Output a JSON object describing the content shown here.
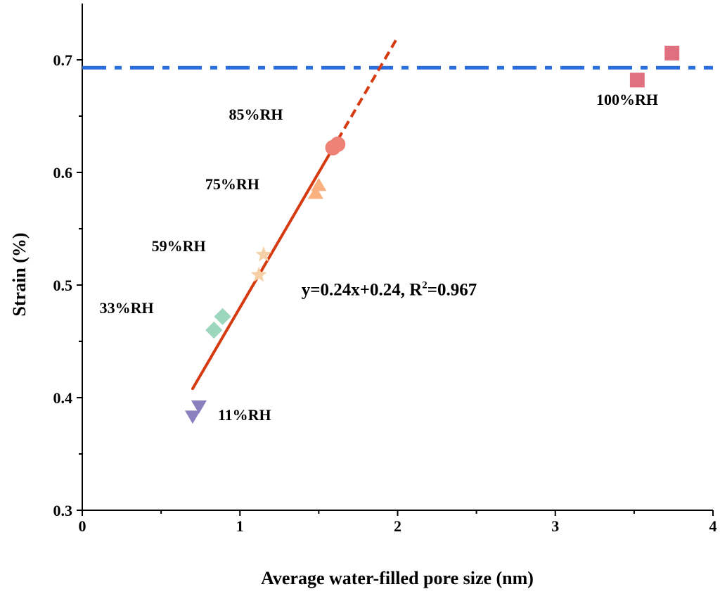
{
  "chart_data": {
    "type": "scatter",
    "xlabel": "Average water-filled pore size (nm)",
    "ylabel": "Strain (%)",
    "xlim": [
      0,
      4
    ],
    "ylim": [
      0.3,
      0.75
    ],
    "xticks": [
      "0",
      "1",
      "2",
      "3",
      "4"
    ],
    "yticks": [
      "0.3",
      "0.4",
      "0.5",
      "0.6",
      "0.7"
    ],
    "grid": false,
    "series": [
      {
        "name": "11%RH",
        "marker": "triangle-down",
        "color": "#8b80bf",
        "points": [
          [
            0.74,
            0.392
          ],
          [
            0.7,
            0.383
          ]
        ],
        "label_at": [
          0.86,
          0.38
        ]
      },
      {
        "name": "33%RH",
        "marker": "diamond",
        "color": "#9bd6bd",
        "points": [
          [
            0.835,
            0.46
          ],
          [
            0.89,
            0.472
          ]
        ],
        "label_at": [
          0.11,
          0.475
        ]
      },
      {
        "name": "59%RH",
        "marker": "star",
        "color": "#f5cfa6",
        "points": [
          [
            1.12,
            0.509
          ],
          [
            1.15,
            0.527
          ]
        ],
        "label_at": [
          0.44,
          0.53
        ]
      },
      {
        "name": "75%RH",
        "marker": "triangle-up",
        "color": "#fbb07f",
        "points": [
          [
            1.48,
            0.582
          ],
          [
            1.5,
            0.589
          ]
        ],
        "label_at": [
          0.78,
          0.585
        ]
      },
      {
        "name": "85%RH",
        "marker": "circle",
        "color": "#ef8276",
        "points": [
          [
            1.59,
            0.622
          ],
          [
            1.62,
            0.625
          ]
        ],
        "label_at": [
          0.93,
          0.647
        ]
      },
      {
        "name": "100%RH",
        "marker": "square",
        "color": "#e0707f",
        "points": [
          [
            3.52,
            0.682
          ],
          [
            3.74,
            0.706
          ]
        ],
        "label_at": [
          3.26,
          0.66
        ]
      }
    ],
    "fit": {
      "label": "y=0.24x+0.24, R",
      "sup": "2",
      "label_tail": "=0.967",
      "slope": 0.24,
      "intercept": 0.24,
      "solid_range": [
        0.7,
        1.62
      ],
      "dashed_range": [
        1.62,
        2.0
      ],
      "color": "#d63a10",
      "label_at": [
        1.39,
        0.491
      ]
    },
    "hline": {
      "y": 0.693,
      "style": "dash-dot",
      "color": "#2a6fe0"
    }
  }
}
